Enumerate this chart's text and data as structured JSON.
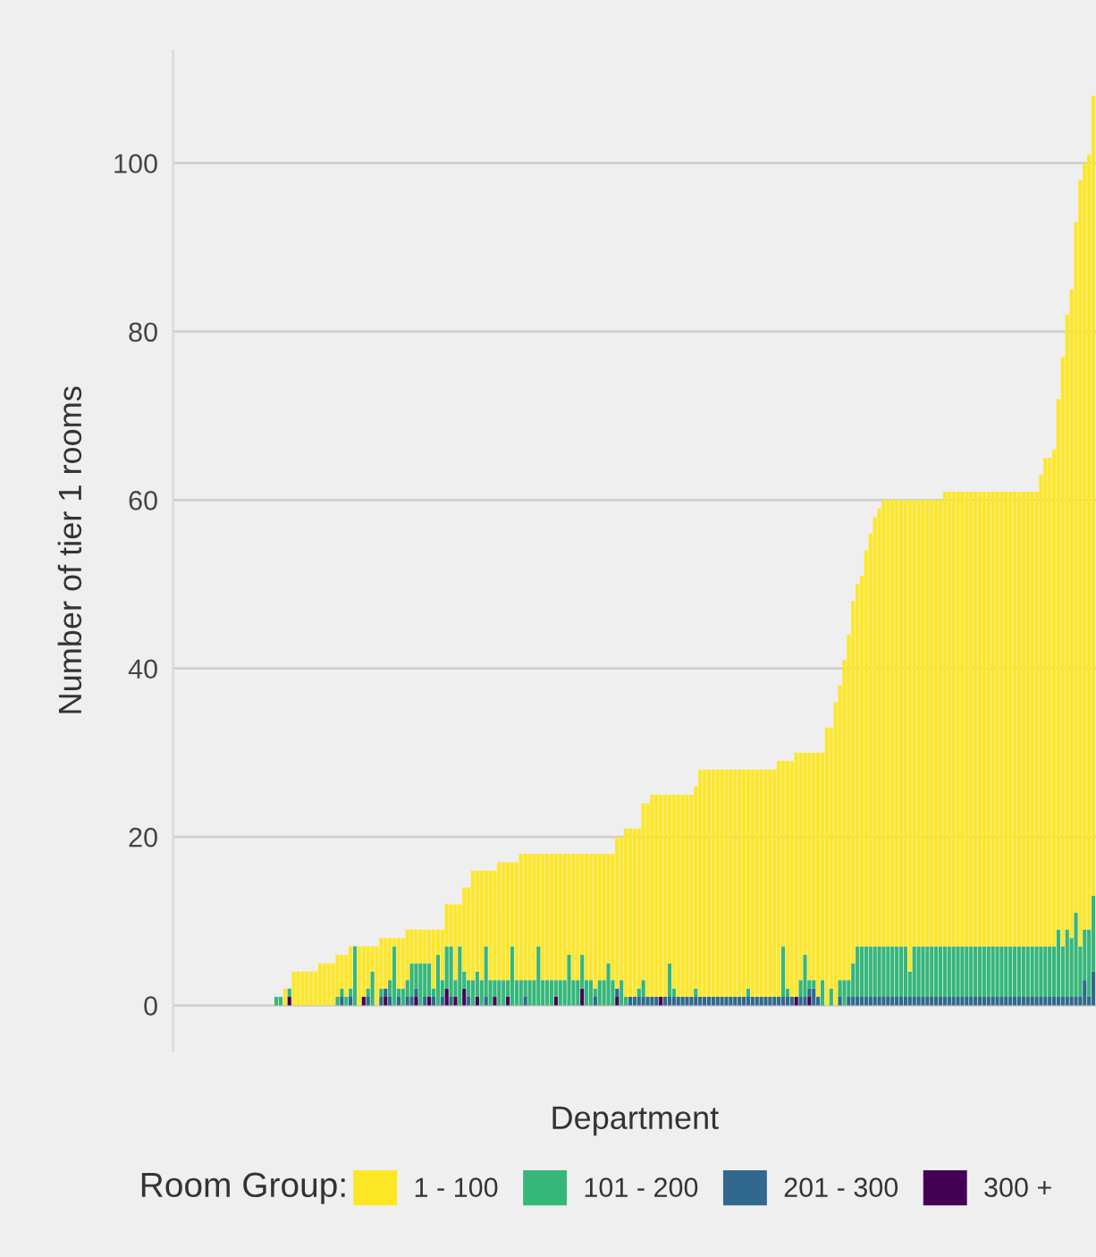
{
  "chart_data": {
    "type": "bar",
    "stacked": true,
    "xlabel": "Department",
    "ylabel": "Number of tier 1 rooms",
    "legend_title": "Room Group:",
    "legend": "bottom",
    "grid": "y",
    "tick_labels": "y",
    "ylim": [
      -5.4,
      113.4
    ],
    "yticks": [
      0,
      20,
      40,
      60,
      80,
      100
    ],
    "categories": [
      null,
      null,
      null,
      null,
      null,
      null,
      null,
      null,
      null,
      null,
      null,
      null,
      null,
      null,
      null,
      null,
      null,
      null,
      null,
      null,
      null,
      null,
      null,
      null,
      null,
      null,
      null,
      null,
      null,
      null,
      null,
      null,
      null,
      null,
      null,
      null,
      null,
      null,
      null,
      null,
      null,
      null,
      null,
      null,
      null,
      null,
      null,
      null,
      null,
      null,
      null,
      null,
      null,
      null,
      null,
      null,
      null,
      null,
      null,
      null,
      null,
      null,
      null,
      null,
      null,
      null,
      null,
      null,
      null,
      null,
      null,
      null,
      null,
      null,
      null,
      null,
      null,
      null,
      null,
      null,
      null,
      null,
      null,
      null,
      null,
      null,
      null,
      null,
      null,
      null,
      null,
      null,
      null,
      null,
      null,
      null,
      null,
      null,
      null,
      null,
      null,
      null,
      null,
      null,
      null,
      null,
      null,
      null,
      null,
      null,
      null,
      null,
      null,
      null,
      null,
      null,
      null,
      null,
      null,
      null,
      null,
      null,
      null,
      null,
      null,
      null,
      null,
      null,
      null,
      null,
      null,
      null,
      null,
      null,
      null,
      null,
      null,
      null,
      null,
      null,
      null,
      null,
      null,
      null,
      null,
      null,
      null,
      null,
      null,
      null,
      null,
      null,
      null,
      null,
      null,
      null,
      null,
      null,
      null,
      null,
      null,
      null,
      null,
      null,
      null,
      null,
      null,
      null,
      null,
      null,
      null,
      null,
      null,
      null,
      null,
      null,
      null,
      null,
      null,
      null,
      null,
      null,
      null,
      null,
      null,
      null,
      null,
      null,
      null,
      null,
      null,
      null,
      null,
      null,
      null,
      null,
      null,
      null,
      null,
      null,
      null,
      null,
      null,
      null,
      null,
      null,
      null,
      null,
      null,
      null,
      null
    ],
    "series": [
      {
        "name": "300 +",
        "color": "#440154",
        "values": [
          0,
          0,
          0,
          0,
          0,
          0,
          0,
          0,
          0,
          0,
          0,
          0,
          0,
          0,
          0,
          0,
          0,
          0,
          0,
          0,
          0,
          0,
          0,
          0,
          0,
          0,
          1,
          0,
          0,
          0,
          0,
          0,
          0,
          0,
          0,
          0,
          0,
          0,
          0,
          0,
          0,
          0,
          0,
          1,
          0,
          0,
          0,
          0,
          1,
          0,
          0,
          0,
          0,
          0,
          0,
          1,
          0,
          0,
          1,
          0,
          0,
          0,
          2,
          0,
          1,
          0,
          2,
          0,
          0,
          1,
          0,
          0,
          0,
          1,
          0,
          0,
          1,
          0,
          0,
          0,
          0,
          0,
          0,
          0,
          0,
          0,
          0,
          1,
          0,
          0,
          0,
          0,
          0,
          2,
          0,
          0,
          0,
          0,
          0,
          0,
          0,
          1,
          0,
          0,
          0,
          0,
          0,
          0,
          0,
          0,
          0,
          1,
          0,
          0,
          0,
          0,
          0,
          0,
          0,
          0,
          0,
          0,
          0,
          0,
          0,
          0,
          0,
          0,
          0,
          0,
          0,
          0,
          0,
          0,
          0,
          0,
          0,
          0,
          0,
          0,
          0,
          0,
          1,
          0,
          0,
          1,
          0,
          0,
          0,
          0,
          0,
          0,
          0,
          0,
          0,
          0,
          0,
          0,
          0,
          0,
          0,
          0,
          0,
          0,
          0,
          0,
          0,
          0,
          0,
          0,
          0,
          0,
          0,
          0,
          0,
          0,
          0,
          0,
          0,
          0,
          0,
          0,
          0,
          0,
          0,
          0,
          0,
          0,
          0,
          0,
          0,
          0,
          0,
          0,
          0,
          0,
          0,
          0,
          0,
          0,
          0,
          0,
          0,
          0,
          0,
          0,
          0,
          0,
          0,
          0,
          0
        ]
      },
      {
        "name": "201 - 300",
        "color": "#31688e",
        "values": [
          0,
          0,
          0,
          0,
          0,
          0,
          0,
          0,
          0,
          0,
          0,
          0,
          0,
          0,
          0,
          0,
          0,
          0,
          0,
          0,
          0,
          0,
          0,
          0,
          0,
          0,
          0,
          0,
          0,
          0,
          0,
          0,
          0,
          0,
          0,
          0,
          0,
          0,
          1,
          0,
          1,
          0,
          0,
          0,
          1,
          0,
          0,
          1,
          1,
          1,
          0,
          1,
          0,
          1,
          1,
          1,
          0,
          1,
          0,
          1,
          0,
          1,
          0,
          1,
          0,
          0,
          0,
          1,
          0,
          0,
          0,
          1,
          0,
          0,
          0,
          0,
          0,
          0,
          0,
          0,
          1,
          0,
          0,
          0,
          0,
          0,
          0,
          0,
          0,
          0,
          0,
          0,
          0,
          0,
          0,
          0,
          1,
          0,
          0,
          0,
          0,
          1,
          0,
          0,
          1,
          1,
          1,
          1,
          1,
          1,
          1,
          0,
          1,
          1,
          1,
          1,
          1,
          1,
          1,
          1,
          1,
          1,
          1,
          1,
          1,
          1,
          1,
          1,
          1,
          1,
          1,
          1,
          1,
          1,
          1,
          1,
          1,
          1,
          1,
          1,
          1,
          1,
          0,
          1,
          1,
          1,
          2,
          1,
          0,
          0,
          0,
          0,
          1,
          0,
          1,
          1,
          1,
          1,
          1,
          1,
          1,
          1,
          1,
          1,
          1,
          1,
          1,
          1,
          1,
          1,
          1,
          1,
          1,
          1,
          1,
          1,
          1,
          1,
          1,
          1,
          1,
          1,
          1,
          1,
          1,
          1,
          1,
          1,
          1,
          1,
          1,
          1,
          1,
          1,
          1,
          1,
          1,
          1,
          1,
          1,
          1,
          1,
          1,
          1,
          1,
          1,
          1,
          1,
          3,
          1,
          4
        ]
      },
      {
        "name": "101 - 200",
        "color": "#35b779",
        "values": [
          0,
          0,
          0,
          0,
          0,
          0,
          0,
          0,
          0,
          0,
          0,
          0,
          0,
          0,
          0,
          0,
          0,
          0,
          0,
          0,
          0,
          0,
          0,
          1,
          1,
          0,
          1,
          0,
          0,
          0,
          0,
          0,
          0,
          0,
          0,
          0,
          0,
          1,
          1,
          1,
          1,
          7,
          0,
          0,
          1,
          4,
          0,
          1,
          0,
          2,
          7,
          1,
          2,
          2,
          4,
          3,
          5,
          4,
          4,
          1,
          6,
          2,
          5,
          6,
          2,
          7,
          2,
          2,
          3,
          3,
          3,
          6,
          3,
          2,
          3,
          3,
          2,
          7,
          3,
          3,
          2,
          3,
          3,
          7,
          3,
          3,
          3,
          2,
          3,
          3,
          6,
          3,
          3,
          4,
          3,
          3,
          1,
          3,
          3,
          5,
          3,
          0,
          3,
          1,
          0,
          0,
          1,
          2,
          0,
          0,
          0,
          0,
          0,
          4,
          1,
          0,
          0,
          0,
          0,
          1,
          0,
          0,
          0,
          0,
          0,
          0,
          0,
          0,
          0,
          0,
          0,
          1,
          0,
          0,
          0,
          0,
          0,
          0,
          0,
          6,
          1,
          0,
          0,
          2,
          5,
          1,
          1,
          0,
          3,
          0,
          2,
          0,
          2,
          3,
          2,
          4,
          6,
          6,
          6,
          6,
          6,
          6,
          6,
          6,
          6,
          6,
          6,
          6,
          3,
          6,
          6,
          6,
          6,
          6,
          6,
          6,
          6,
          6,
          6,
          6,
          6,
          6,
          6,
          6,
          6,
          6,
          6,
          6,
          6,
          6,
          6,
          6,
          6,
          6,
          6,
          6,
          6,
          6,
          6,
          6,
          6,
          6,
          8,
          6,
          8,
          7,
          10,
          6,
          6,
          8,
          9
        ]
      },
      {
        "name": "1 - 100",
        "color": "#fde725",
        "values": [
          0,
          0,
          0,
          0,
          0,
          0,
          0,
          0,
          0,
          0,
          0,
          0,
          0,
          0,
          0,
          0,
          0,
          0,
          0,
          0,
          0,
          0,
          0,
          0,
          0,
          2,
          0,
          4,
          4,
          4,
          4,
          4,
          4,
          5,
          5,
          5,
          5,
          5,
          4,
          5,
          5,
          0,
          7,
          6,
          5,
          3,
          7,
          6,
          6,
          5,
          1,
          6,
          6,
          6,
          4,
          4,
          4,
          4,
          4,
          7,
          3,
          6,
          5,
          5,
          9,
          5,
          10,
          11,
          13,
          12,
          13,
          9,
          13,
          13,
          14,
          14,
          14,
          10,
          14,
          15,
          15,
          15,
          15,
          11,
          15,
          15,
          15,
          15,
          15,
          15,
          12,
          15,
          15,
          12,
          15,
          15,
          16,
          15,
          15,
          13,
          15,
          18,
          17,
          20,
          20,
          20,
          19,
          21,
          23,
          24,
          24,
          24,
          24,
          20,
          23,
          24,
          24,
          24,
          24,
          24,
          27,
          27,
          27,
          27,
          27,
          27,
          27,
          27,
          27,
          27,
          27,
          26,
          27,
          27,
          27,
          27,
          27,
          27,
          28,
          22,
          27,
          28,
          29,
          27,
          24,
          27,
          27,
          29,
          27,
          33,
          31,
          36,
          35,
          38,
          41,
          43,
          43,
          44,
          47,
          49,
          51,
          52,
          53,
          53,
          53,
          53,
          53,
          53,
          56,
          53,
          53,
          53,
          53,
          53,
          53,
          53,
          54,
          54,
          54,
          54,
          54,
          54,
          54,
          54,
          54,
          54,
          54,
          54,
          54,
          54,
          54,
          54,
          54,
          54,
          54,
          54,
          54,
          54,
          56,
          58,
          58,
          59,
          63,
          70,
          73,
          77,
          82,
          91,
          91,
          92,
          95
        ]
      }
    ]
  }
}
